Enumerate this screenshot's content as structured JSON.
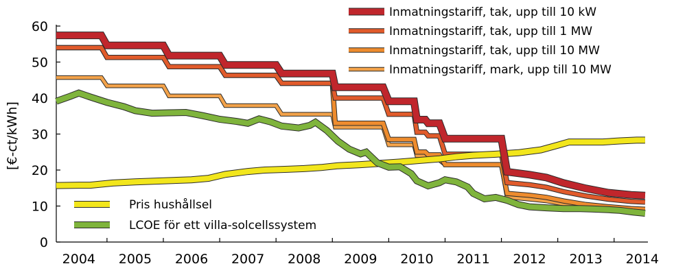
{
  "chart_data": {
    "type": "line",
    "title": "",
    "xlabel": "",
    "ylabel": "[€-ct/kWh]",
    "ylim": [
      0,
      60
    ],
    "xlim": [
      2003.6,
      2014.1
    ],
    "y_ticks": [
      "0",
      "10",
      "20",
      "30",
      "40",
      "50",
      "60"
    ],
    "x_ticks": [
      "2004",
      "2005",
      "2006",
      "2007",
      "2008",
      "2009",
      "2010",
      "2011",
      "2012",
      "2013",
      "2014"
    ],
    "grid": false,
    "series": [
      {
        "name": "Inmatningstariff, tak, upp till 10 kW",
        "color": "#c0262c",
        "legend": "top",
        "points": [
          [
            2003.6,
            57.4
          ],
          [
            2004.4,
            57.4
          ],
          [
            2004.5,
            54.6
          ],
          [
            2005.5,
            54.6
          ],
          [
            2005.6,
            51.8
          ],
          [
            2006.5,
            51.8
          ],
          [
            2006.6,
            49.2
          ],
          [
            2007.5,
            49.2
          ],
          [
            2007.6,
            46.8
          ],
          [
            2008.5,
            46.8
          ],
          [
            2008.55,
            43.0
          ],
          [
            2009.4,
            43.0
          ],
          [
            2009.5,
            39.1
          ],
          [
            2009.95,
            39.1
          ],
          [
            2010.0,
            34.0
          ],
          [
            2010.15,
            34.0
          ],
          [
            2010.2,
            33.0
          ],
          [
            2010.4,
            33.0
          ],
          [
            2010.5,
            28.7
          ],
          [
            2011.5,
            28.7
          ],
          [
            2011.6,
            19.5
          ],
          [
            2012.0,
            18.7
          ],
          [
            2012.3,
            17.9
          ],
          [
            2012.6,
            16.4
          ],
          [
            2013.0,
            14.9
          ],
          [
            2013.4,
            13.7
          ],
          [
            2013.8,
            13.1
          ],
          [
            2014.05,
            12.9
          ]
        ]
      },
      {
        "name": "Inmatningstariff, tak, upp till 1 MW",
        "color": "#e15b2b",
        "legend": "top",
        "points": [
          [
            2003.6,
            54.0
          ],
          [
            2004.4,
            54.0
          ],
          [
            2004.5,
            51.3
          ],
          [
            2005.5,
            51.3
          ],
          [
            2005.6,
            48.7
          ],
          [
            2006.5,
            48.7
          ],
          [
            2006.6,
            46.3
          ],
          [
            2007.5,
            46.3
          ],
          [
            2007.6,
            44.1
          ],
          [
            2008.5,
            44.1
          ],
          [
            2008.55,
            40.0
          ],
          [
            2009.4,
            40.0
          ],
          [
            2009.5,
            35.5
          ],
          [
            2009.95,
            35.5
          ],
          [
            2010.0,
            30.5
          ],
          [
            2010.15,
            30.5
          ],
          [
            2010.2,
            29.5
          ],
          [
            2010.4,
            29.5
          ],
          [
            2010.5,
            24.4
          ],
          [
            2011.5,
            24.4
          ],
          [
            2011.6,
            16.5
          ],
          [
            2012.0,
            15.9
          ],
          [
            2012.3,
            15.2
          ],
          [
            2012.6,
            14.0
          ],
          [
            2013.0,
            12.8
          ],
          [
            2013.4,
            11.9
          ],
          [
            2013.8,
            11.3
          ],
          [
            2014.05,
            11.1
          ]
        ]
      },
      {
        "name": "Inmatningstariff, tak, upp till 10 MW",
        "color": "#ee8c2e",
        "legend": "top",
        "points": [
          [
            2003.6,
            54.0
          ],
          [
            2004.4,
            54.0
          ],
          [
            2004.5,
            51.3
          ],
          [
            2005.5,
            51.3
          ],
          [
            2005.6,
            48.7
          ],
          [
            2006.5,
            48.7
          ],
          [
            2006.6,
            46.3
          ],
          [
            2007.5,
            46.3
          ],
          [
            2007.6,
            44.1
          ],
          [
            2008.5,
            44.1
          ],
          [
            2008.55,
            33.0
          ],
          [
            2009.4,
            33.0
          ],
          [
            2009.5,
            28.5
          ],
          [
            2009.95,
            28.5
          ],
          [
            2010.0,
            25.0
          ],
          [
            2010.15,
            25.0
          ],
          [
            2010.2,
            24.2
          ],
          [
            2010.4,
            24.2
          ],
          [
            2010.5,
            21.5
          ],
          [
            2011.5,
            21.5
          ],
          [
            2011.6,
            13.5
          ],
          [
            2012.0,
            13.0
          ],
          [
            2012.3,
            12.4
          ],
          [
            2012.6,
            11.4
          ],
          [
            2013.0,
            10.4
          ],
          [
            2013.4,
            9.8
          ],
          [
            2013.8,
            9.3
          ],
          [
            2014.05,
            9.1
          ]
        ]
      },
      {
        "name": "Inmatningstariff, mark, upp till 10 MW",
        "color": "#f2a24a",
        "legend": "top",
        "points": [
          [
            2003.6,
            45.7
          ],
          [
            2004.4,
            45.7
          ],
          [
            2004.5,
            43.4
          ],
          [
            2005.5,
            43.4
          ],
          [
            2005.6,
            40.6
          ],
          [
            2006.5,
            40.6
          ],
          [
            2006.6,
            37.9
          ],
          [
            2007.5,
            37.9
          ],
          [
            2007.6,
            35.5
          ],
          [
            2008.5,
            35.5
          ],
          [
            2008.55,
            31.9
          ],
          [
            2009.4,
            31.9
          ],
          [
            2009.5,
            27.0
          ],
          [
            2009.95,
            27.0
          ],
          [
            2010.0,
            24.0
          ],
          [
            2010.15,
            24.0
          ],
          [
            2010.2,
            22.8
          ],
          [
            2010.4,
            22.8
          ],
          [
            2010.5,
            21.5
          ],
          [
            2011.5,
            21.5
          ],
          [
            2011.6,
            12.5
          ],
          [
            2012.0,
            11.9
          ],
          [
            2012.3,
            11.4
          ],
          [
            2012.6,
            10.6
          ],
          [
            2013.0,
            9.7
          ],
          [
            2013.4,
            9.2
          ],
          [
            2013.8,
            8.9
          ],
          [
            2014.05,
            8.8
          ]
        ]
      },
      {
        "name": "Pris hushållsel",
        "color": "#f2e61c",
        "legend": "bottom",
        "points": [
          [
            2003.6,
            15.7
          ],
          [
            2004.0,
            15.8
          ],
          [
            2004.2,
            15.8
          ],
          [
            2004.6,
            16.4
          ],
          [
            2005.0,
            16.7
          ],
          [
            2005.5,
            17.0
          ],
          [
            2006.0,
            17.3
          ],
          [
            2006.3,
            17.7
          ],
          [
            2006.6,
            18.8
          ],
          [
            2007.0,
            19.6
          ],
          [
            2007.3,
            20.0
          ],
          [
            2007.7,
            20.2
          ],
          [
            2008.0,
            20.4
          ],
          [
            2008.3,
            20.7
          ],
          [
            2008.6,
            21.2
          ],
          [
            2009.0,
            21.5
          ],
          [
            2009.4,
            21.9
          ],
          [
            2009.7,
            22.2
          ],
          [
            2010.0,
            22.6
          ],
          [
            2010.4,
            23.1
          ],
          [
            2010.7,
            23.7
          ],
          [
            2011.0,
            24.1
          ],
          [
            2011.4,
            24.4
          ],
          [
            2011.8,
            24.8
          ],
          [
            2012.2,
            25.6
          ],
          [
            2012.5,
            26.9
          ],
          [
            2012.7,
            27.8
          ],
          [
            2013.0,
            27.8
          ],
          [
            2013.3,
            27.8
          ],
          [
            2013.6,
            28.1
          ],
          [
            2013.9,
            28.3
          ],
          [
            2014.05,
            28.3
          ]
        ]
      },
      {
        "name": "LCOE för ett villa-solcellssystem",
        "color": "#7fb43c",
        "legend": "bottom",
        "points": [
          [
            2003.6,
            39.1
          ],
          [
            2003.85,
            40.5
          ],
          [
            2004.0,
            41.4
          ],
          [
            2004.2,
            40.3
          ],
          [
            2004.5,
            38.8
          ],
          [
            2004.8,
            37.6
          ],
          [
            2005.0,
            36.5
          ],
          [
            2005.3,
            35.8
          ],
          [
            2005.6,
            35.9
          ],
          [
            2005.9,
            36.0
          ],
          [
            2006.2,
            35.1
          ],
          [
            2006.5,
            34.1
          ],
          [
            2006.8,
            33.5
          ],
          [
            2007.0,
            33.0
          ],
          [
            2007.2,
            34.2
          ],
          [
            2007.4,
            33.4
          ],
          [
            2007.6,
            32.2
          ],
          [
            2007.9,
            31.7
          ],
          [
            2008.1,
            32.4
          ],
          [
            2008.2,
            33.3
          ],
          [
            2008.4,
            31.0
          ],
          [
            2008.6,
            28.0
          ],
          [
            2008.8,
            25.8
          ],
          [
            2009.0,
            24.5
          ],
          [
            2009.1,
            25.0
          ],
          [
            2009.3,
            22.0
          ],
          [
            2009.5,
            20.8
          ],
          [
            2009.7,
            20.9
          ],
          [
            2009.9,
            19.0
          ],
          [
            2010.0,
            17.0
          ],
          [
            2010.2,
            15.6
          ],
          [
            2010.4,
            16.5
          ],
          [
            2010.5,
            17.3
          ],
          [
            2010.7,
            16.7
          ],
          [
            2010.9,
            15.3
          ],
          [
            2011.0,
            13.5
          ],
          [
            2011.2,
            12.0
          ],
          [
            2011.4,
            12.4
          ],
          [
            2011.6,
            11.6
          ],
          [
            2011.8,
            10.4
          ],
          [
            2012.0,
            9.8
          ],
          [
            2012.3,
            9.5
          ],
          [
            2012.6,
            9.3
          ],
          [
            2012.9,
            9.3
          ],
          [
            2013.1,
            9.2
          ],
          [
            2013.4,
            9.0
          ],
          [
            2013.6,
            8.8
          ],
          [
            2013.85,
            8.3
          ],
          [
            2014.05,
            8.0
          ]
        ]
      }
    ]
  }
}
